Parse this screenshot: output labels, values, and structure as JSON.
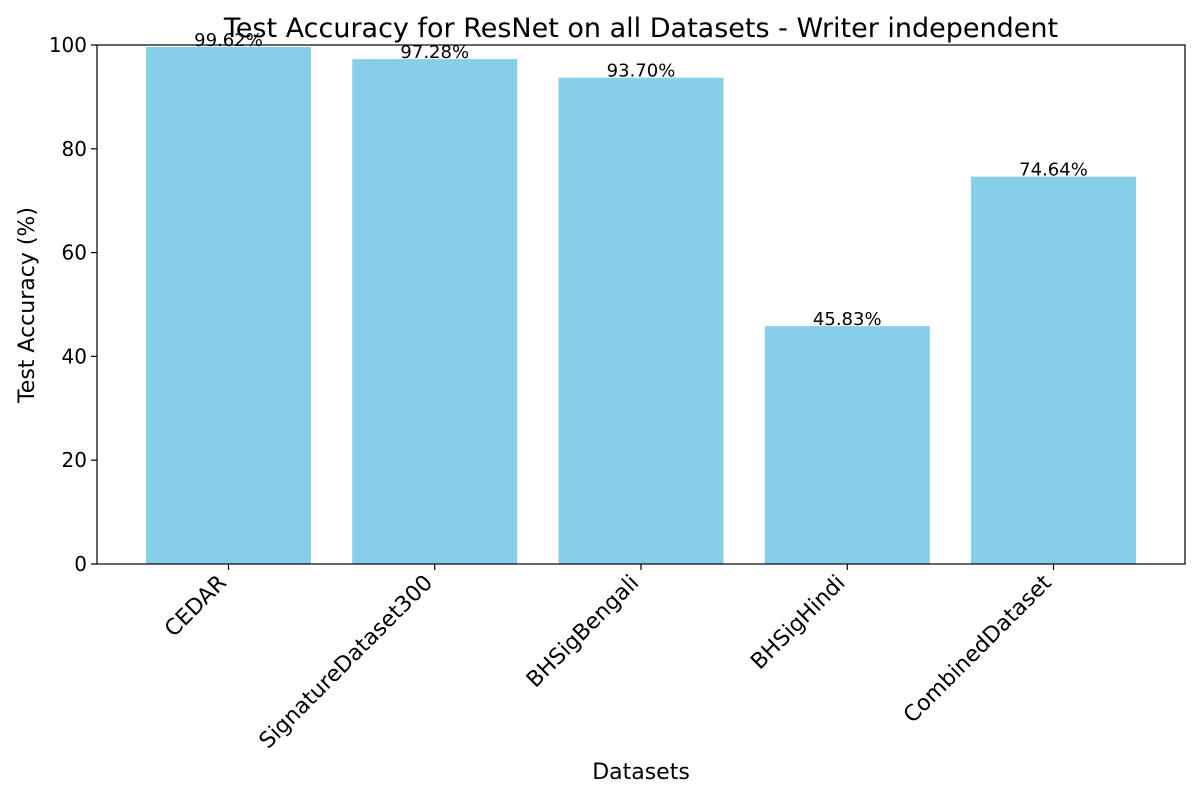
{
  "chart_data": {
    "type": "bar",
    "title": "Test Accuracy for ResNet on all Datasets - Writer independent",
    "xlabel": "Datasets",
    "ylabel": "Test Accuracy (%)",
    "categories": [
      "CEDAR",
      "SignatureDataset300",
      "BHSigBengali",
      "BHSigHindi",
      "CombinedDataset"
    ],
    "values": [
      99.62,
      97.28,
      93.7,
      45.83,
      74.64
    ],
    "data_labels": [
      "99.62%",
      "97.28%",
      "93.70%",
      "45.83%",
      "74.64%"
    ],
    "yticks": [
      "0",
      "20",
      "40",
      "60",
      "80",
      "100"
    ],
    "ylim": [
      0,
      100
    ],
    "grid": false,
    "legend": "none",
    "bar_color": "#87CEEB"
  }
}
